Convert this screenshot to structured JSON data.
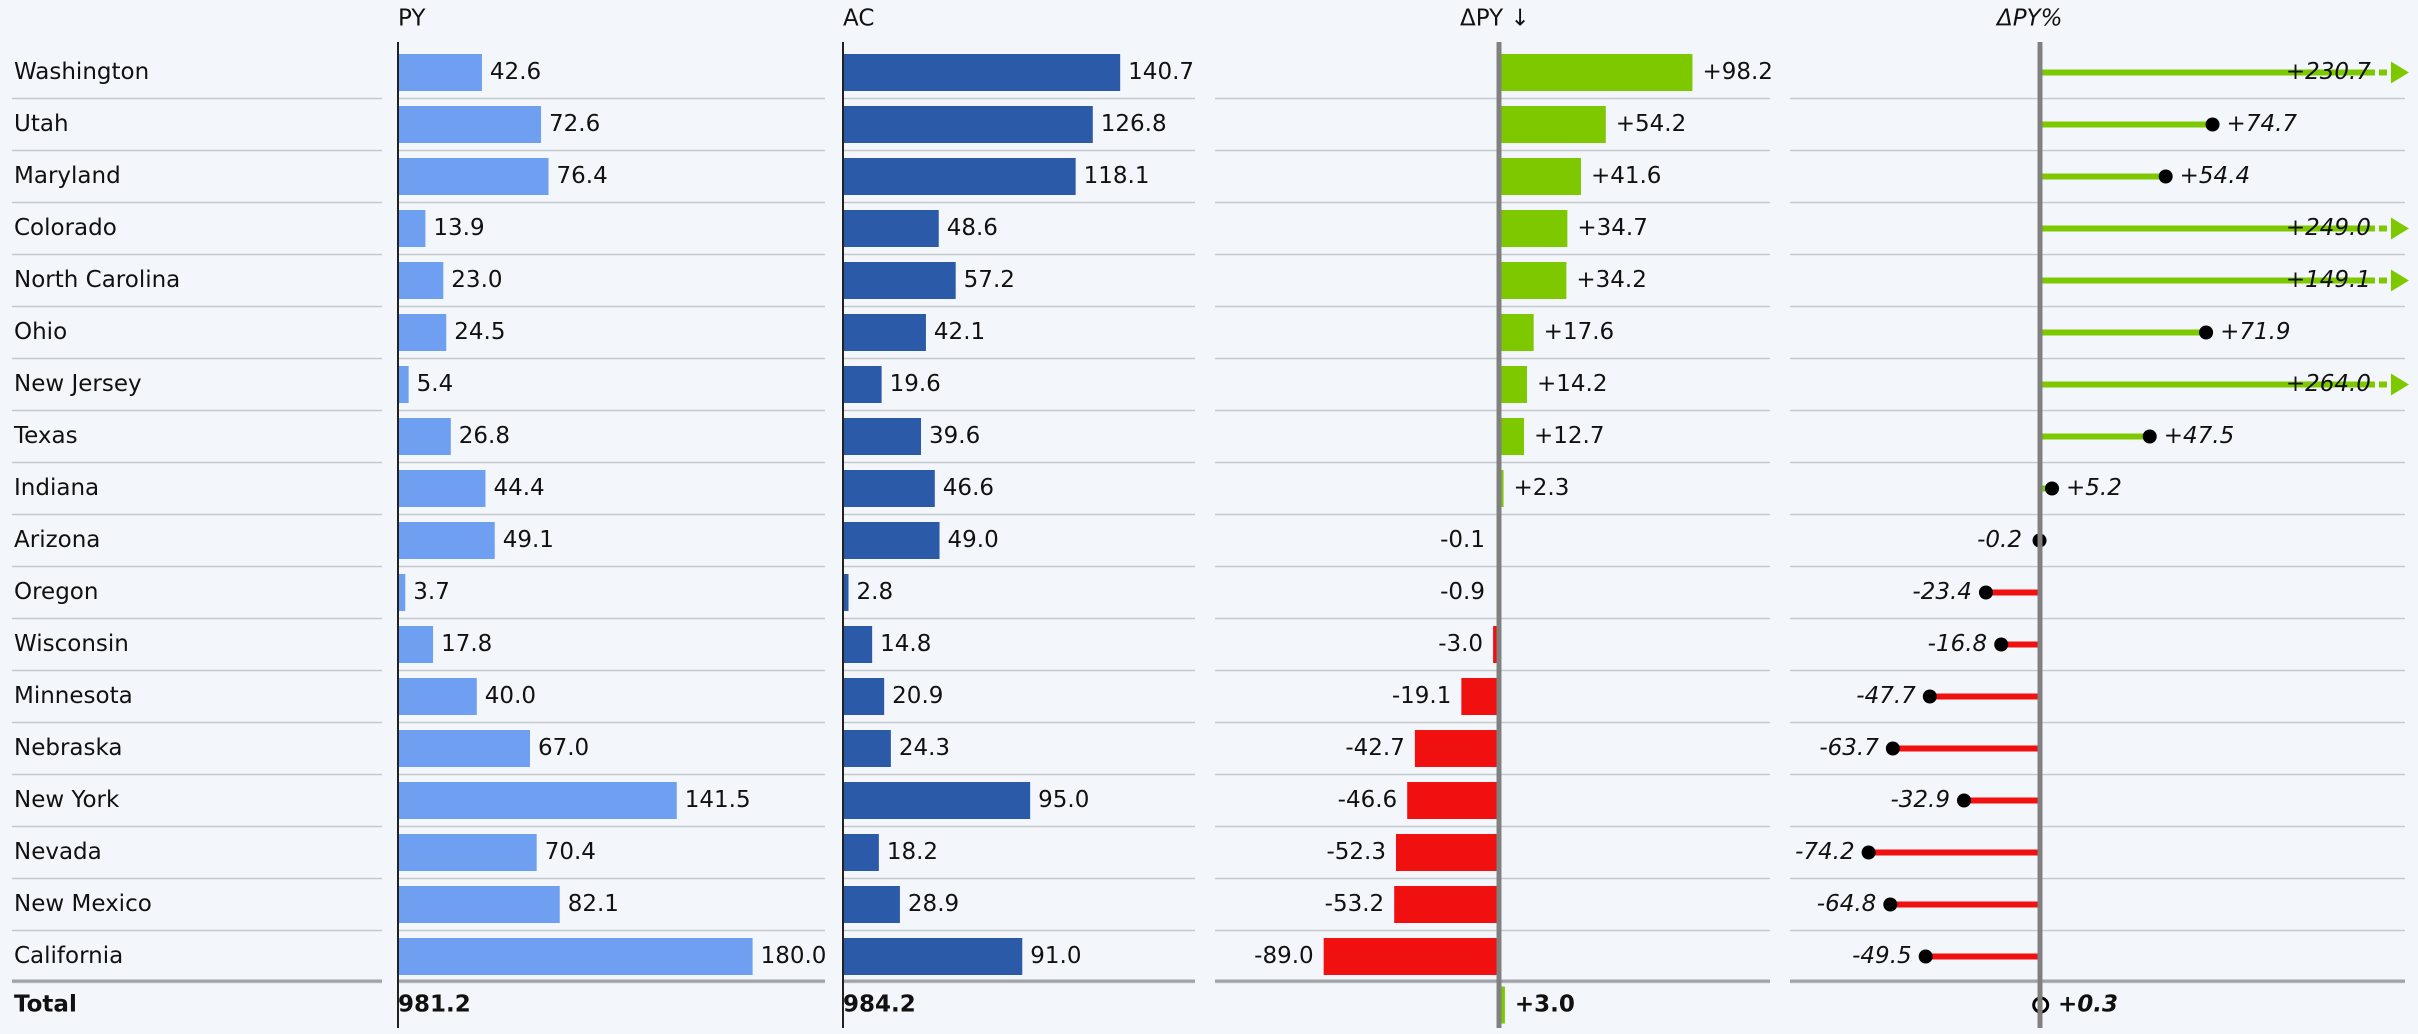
{
  "chart_data": {
    "type": "bar",
    "total_label": "Total",
    "categories": [
      "Washington",
      "Utah",
      "Maryland",
      "Colorado",
      "North Carolina",
      "Ohio",
      "New Jersey",
      "Texas",
      "Indiana",
      "Arizona",
      "Oregon",
      "Wisconsin",
      "Minnesota",
      "Nebraska",
      "New York",
      "Nevada",
      "New Mexico",
      "California"
    ],
    "series": [
      {
        "name": "PY",
        "color": "#6f9ff0",
        "kind": "absolute",
        "values": [
          42.6,
          72.6,
          76.4,
          13.9,
          23.0,
          24.5,
          5.4,
          26.8,
          44.4,
          49.1,
          3.7,
          17.8,
          40.0,
          67.0,
          141.5,
          70.4,
          82.1,
          180.0
        ],
        "value_labels": [
          "42.6",
          "72.6",
          "76.4",
          "13.9",
          "23.0",
          "24.5",
          "5.4",
          "26.8",
          "44.4",
          "49.1",
          "3.7",
          "17.8",
          "40.0",
          "67.0",
          "141.5",
          "70.4",
          "82.1",
          "180.0"
        ],
        "total": 981.2,
        "total_label": "981.2"
      },
      {
        "name": "AC",
        "color": "#2a5aa8",
        "kind": "absolute",
        "values": [
          140.7,
          126.8,
          118.1,
          48.6,
          57.2,
          42.1,
          19.6,
          39.6,
          46.6,
          49.0,
          2.8,
          14.8,
          20.9,
          24.3,
          95.0,
          18.2,
          28.9,
          91.0
        ],
        "value_labels": [
          "140.7",
          "126.8",
          "118.1",
          "48.6",
          "57.2",
          "42.1",
          "19.6",
          "39.6",
          "46.6",
          "49.0",
          "2.8",
          "14.8",
          "20.9",
          "24.3",
          "95.0",
          "18.2",
          "28.9",
          "91.0"
        ],
        "total": 984.2,
        "total_label": "984.2"
      },
      {
        "name": "ΔPY ↓",
        "color": "#7ec800",
        "negative_color": "#f01010",
        "kind": "variance",
        "values": [
          98.2,
          54.2,
          41.6,
          34.7,
          34.2,
          17.6,
          14.2,
          12.7,
          2.3,
          -0.1,
          -0.9,
          -3.0,
          -19.1,
          -42.7,
          -46.6,
          -52.3,
          -53.2,
          -89.0
        ],
        "value_labels": [
          "+98.2",
          "+54.2",
          "+41.6",
          "+34.7",
          "+34.2",
          "+17.6",
          "+14.2",
          "+12.7",
          "+2.3",
          "-0.1",
          "-0.9",
          "-3.0",
          "-19.1",
          "-42.7",
          "-46.6",
          "-52.3",
          "-53.2",
          "-89.0"
        ],
        "total": 3.0,
        "total_label": "+3.0"
      },
      {
        "name": "ΔPY%",
        "color": "#7ec800",
        "negative_color": "#f01010",
        "kind": "percent",
        "values": [
          230.7,
          74.7,
          54.4,
          249.0,
          149.1,
          71.9,
          264.0,
          47.5,
          5.2,
          -0.2,
          -23.4,
          -16.8,
          -47.7,
          -63.7,
          -32.9,
          -74.2,
          -64.8,
          -49.5
        ],
        "value_labels": [
          "+230.7",
          "+74.7",
          "+54.4",
          "+249.0",
          "+149.1",
          "+71.9",
          "+264.0",
          "+47.5",
          "+5.2",
          "-0.2",
          "-23.4",
          "-16.8",
          "-47.7",
          "-63.7",
          "-32.9",
          "-74.2",
          "-64.8",
          "-49.5"
        ],
        "total": 0.3,
        "total_label": "+0.3"
      }
    ]
  }
}
